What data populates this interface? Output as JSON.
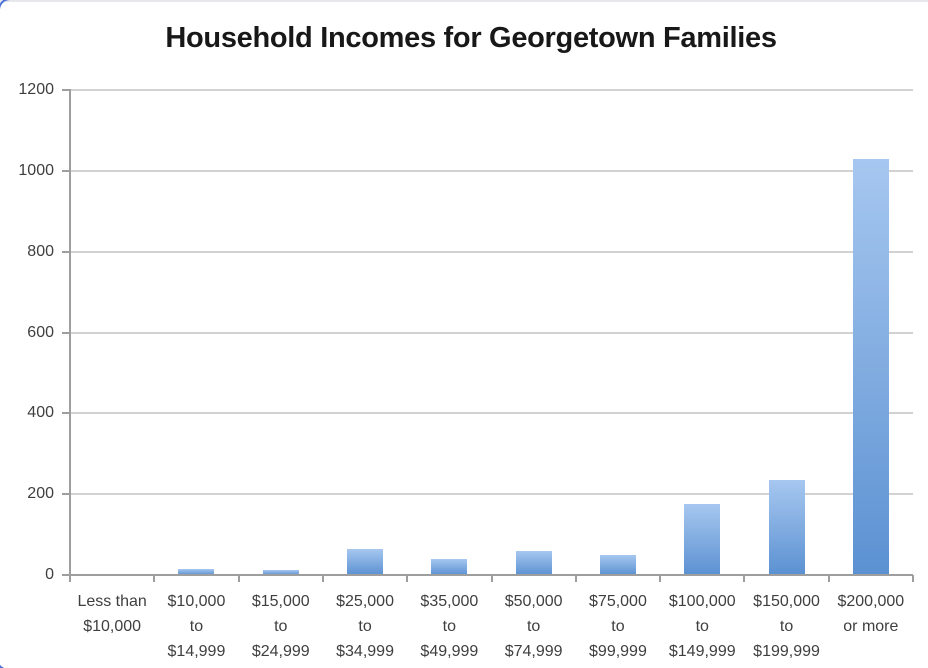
{
  "chart": {
    "title": "Household Incomes for Georgetown Families"
  },
  "chart_data": {
    "type": "bar",
    "title": "Household Incomes for Georgetown Families",
    "categories": [
      "Less than $10,000",
      "$10,000 to $14,999",
      "$15,000 to $24,999",
      "$25,000 to $34,999",
      "$35,000 to $49,999",
      "$50,000 to $74,999",
      "$75,000 to $99,999",
      "$100,000 to $149,999",
      "$150,000 to $199,999",
      "$200,000 or more"
    ],
    "category_lines": [
      [
        "Less than",
        "$10,000"
      ],
      [
        "$10,000",
        "to",
        "$14,999"
      ],
      [
        "$15,000",
        "to",
        "$24,999"
      ],
      [
        "$25,000",
        "to",
        "$34,999"
      ],
      [
        "$35,000",
        "to",
        "$49,999"
      ],
      [
        "$50,000",
        "to",
        "$74,999"
      ],
      [
        "$75,000",
        "to",
        "$99,999"
      ],
      [
        "$100,000",
        "to",
        "$149,999"
      ],
      [
        "$150,000",
        "to",
        "$199,999"
      ],
      [
        "$200,000",
        "or more"
      ]
    ],
    "values": [
      0,
      15,
      12,
      65,
      40,
      60,
      50,
      175,
      235,
      1030
    ],
    "xlabel": "",
    "ylabel": "",
    "ylim": [
      0,
      1200
    ],
    "yticks": [
      0,
      200,
      400,
      600,
      800,
      1000,
      1200
    ],
    "grid": true,
    "legend": false,
    "colors": {
      "bar_top": "#a6c7f0",
      "bar_bottom": "#5b91d2",
      "gridline": "#d2d2d2",
      "axis": "#9e9e9e",
      "label": "#3f3f3f",
      "title": "#181818",
      "corner_accent": "#4a6fd6",
      "top_edge": "#e7e8ec"
    }
  }
}
